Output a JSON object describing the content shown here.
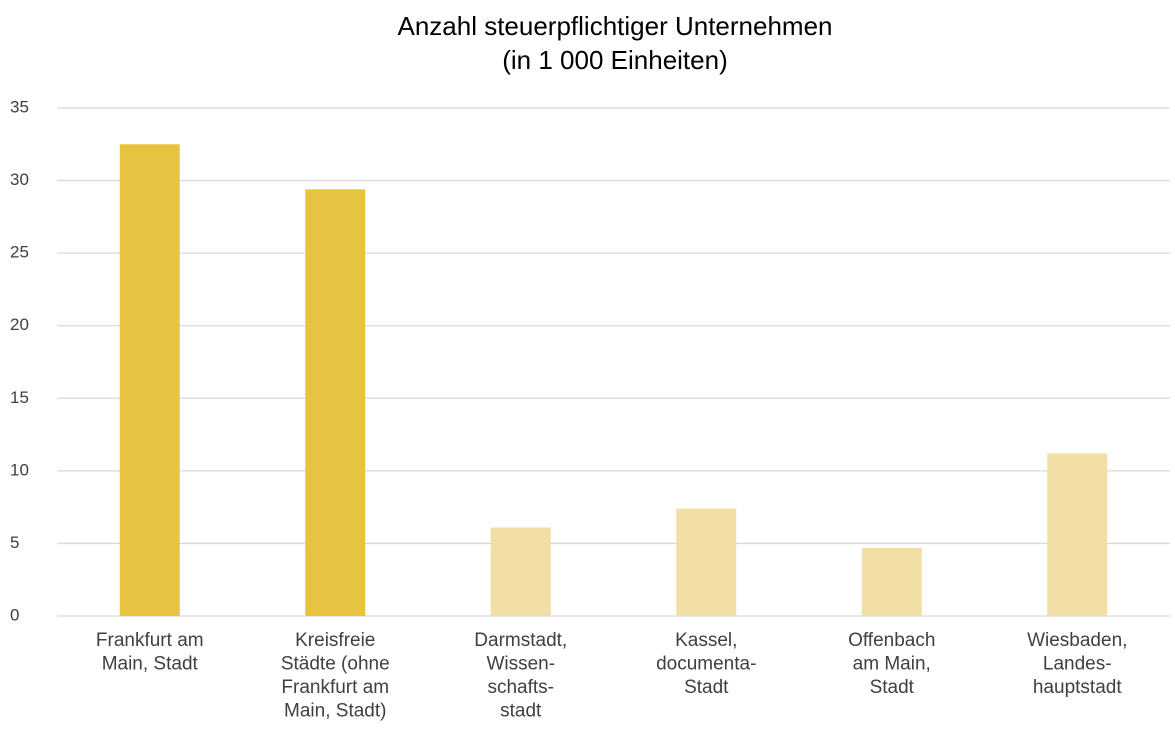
{
  "chart_data": {
    "type": "bar",
    "title": "Anzahl steuerpflichtiger Unternehmen",
    "subtitle": "(in 1 000 Einheiten)",
    "categories": [
      [
        "Frankfurt am",
        "Main, Stadt"
      ],
      [
        "Kreisfreie",
        "Städte (ohne",
        "Frankfurt am",
        "Main, Stadt)"
      ],
      [
        "Darmstadt,",
        "Wissen-",
        "schafts-",
        "stadt"
      ],
      [
        "Kassel,",
        "documenta-",
        "Stadt"
      ],
      [
        "Offenbach",
        "am Main,",
        "Stadt"
      ],
      [
        "Wiesbaden,",
        "Landes-",
        "hauptstadt"
      ]
    ],
    "values": [
      32.5,
      29.4,
      6.1,
      7.4,
      4.7,
      11.2
    ],
    "colors": [
      "#e6c441",
      "#e6c441",
      "#f2dfa6",
      "#f2dfa6",
      "#f2dfa6",
      "#f2dfa6"
    ],
    "ylim": [
      0,
      35
    ],
    "yticks": [
      0,
      5,
      10,
      15,
      20,
      25,
      30,
      35
    ],
    "grid": true
  }
}
